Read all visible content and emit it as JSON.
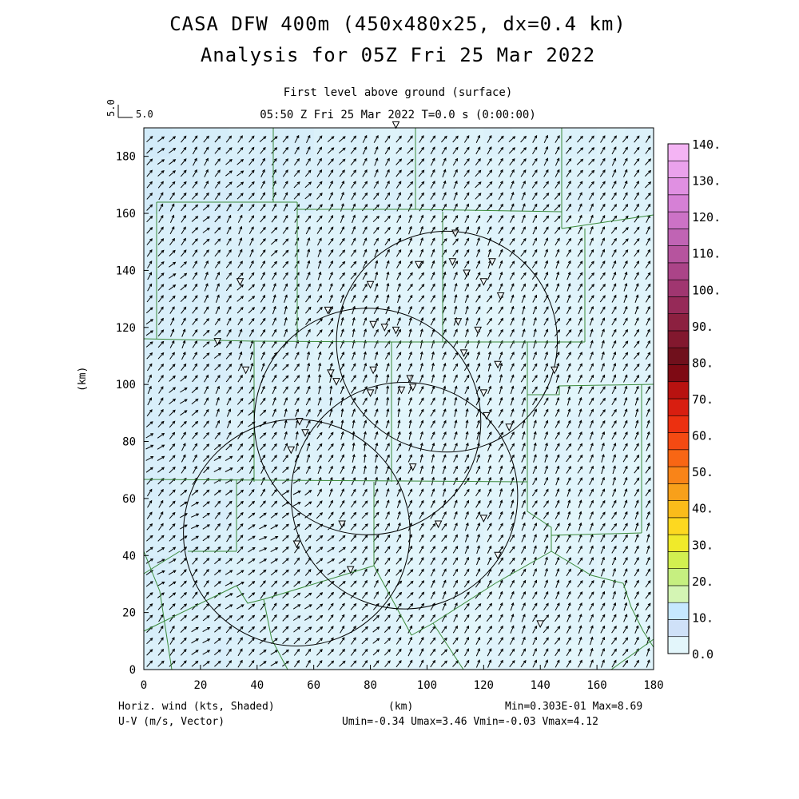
{
  "title": {
    "line1": "CASA DFW 400m (450x480x25, dx=0.4 km)",
    "line2": "Analysis for 05Z Fri 25 Mar 2022"
  },
  "subtitle": {
    "level": "First level above ground (surface)",
    "time": "05:50 Z Fri 25 Mar 2022    T=0.0 s (0:00:00)"
  },
  "vector_key": {
    "x_label": "5.0",
    "y_label": "5.0"
  },
  "footer": {
    "left1": "Horiz. wind (kts, Shaded)",
    "left2": "U-V (m/s, Vector)",
    "center": "(km)",
    "right1": "Min=0.303E-01 Max=8.69",
    "right2": "Umin=-0.34 Umax=3.46 Vmin=-0.03 Vmax=4.12"
  },
  "axes": {
    "xlabel": "",
    "ylabel": "(km)",
    "xlim": [
      0,
      180
    ],
    "ylim": [
      0,
      190
    ],
    "xticks": [
      "0",
      "20",
      "40",
      "60",
      "80",
      "100",
      "120",
      "140",
      "160",
      "180"
    ],
    "yticks": [
      "0",
      "20",
      "40",
      "60",
      "80",
      "100",
      "120",
      "140",
      "160",
      "180"
    ]
  },
  "colorbar": {
    "labels": [
      "0.0",
      "10.",
      "20.",
      "30.",
      "40.",
      "50.",
      "60.",
      "70.",
      "80.",
      "90.",
      "100.",
      "110.",
      "120.",
      "130.",
      "140."
    ],
    "colors": [
      "#e3f6fb",
      "#cfe1f8",
      "#c6e8ff",
      "#d4f5b4",
      "#c6ef80",
      "#d2f050",
      "#f0ea2a",
      "#fdd820",
      "#fbbc1a",
      "#f8a01a",
      "#f98418",
      "#f86614",
      "#f44a12",
      "#ec3010",
      "#d81e10",
      "#b81210",
      "#7e0a14",
      "#70101c",
      "#82182e",
      "#8c2040",
      "#962a58",
      "#a03670",
      "#ab4488",
      "#b6549e",
      "#c064b4",
      "#cc72c6",
      "#d680d6",
      "#e090e2",
      "#eaa2ec",
      "#f4b4f4"
    ]
  },
  "radars": [
    {
      "name": "radar-1",
      "cx": 107,
      "cy": 115,
      "r": 39
    },
    {
      "name": "radar-2",
      "cx": 79,
      "cy": 87,
      "r": 40
    },
    {
      "name": "radar-3",
      "cx": 92,
      "cy": 61,
      "r": 40
    },
    {
      "name": "radar-4",
      "cx": 54,
      "cy": 48,
      "r": 40
    }
  ],
  "stations": [
    [
      89,
      191
    ],
    [
      110,
      153
    ],
    [
      97,
      142
    ],
    [
      109,
      143
    ],
    [
      123,
      143
    ],
    [
      114,
      139
    ],
    [
      120,
      136
    ],
    [
      34,
      136
    ],
    [
      80,
      135
    ],
    [
      126,
      131
    ],
    [
      65,
      126
    ],
    [
      81,
      121
    ],
    [
      85,
      120
    ],
    [
      89,
      119
    ],
    [
      111,
      122
    ],
    [
      118,
      119
    ],
    [
      26,
      115
    ],
    [
      113,
      111
    ],
    [
      36,
      105
    ],
    [
      66,
      104
    ],
    [
      81,
      105
    ],
    [
      125,
      107
    ],
    [
      145,
      105
    ],
    [
      94,
      102
    ],
    [
      68,
      101
    ],
    [
      91,
      98
    ],
    [
      95,
      99
    ],
    [
      80,
      97
    ],
    [
      120,
      97
    ],
    [
      55,
      87
    ],
    [
      121,
      89
    ],
    [
      57,
      83
    ],
    [
      129,
      85
    ],
    [
      52,
      77
    ],
    [
      95,
      71
    ],
    [
      70,
      51
    ],
    [
      104,
      51
    ],
    [
      120,
      53
    ],
    [
      54,
      44
    ],
    [
      125,
      40
    ],
    [
      73,
      35
    ],
    [
      140,
      16
    ]
  ],
  "wind_field": {
    "grid_step_km": 4,
    "u_range": [
      -0.34,
      3.46
    ],
    "v_range": [
      -0.03,
      4.12
    ],
    "speed_min": "0.303E-01",
    "speed_max": "8.69"
  }
}
